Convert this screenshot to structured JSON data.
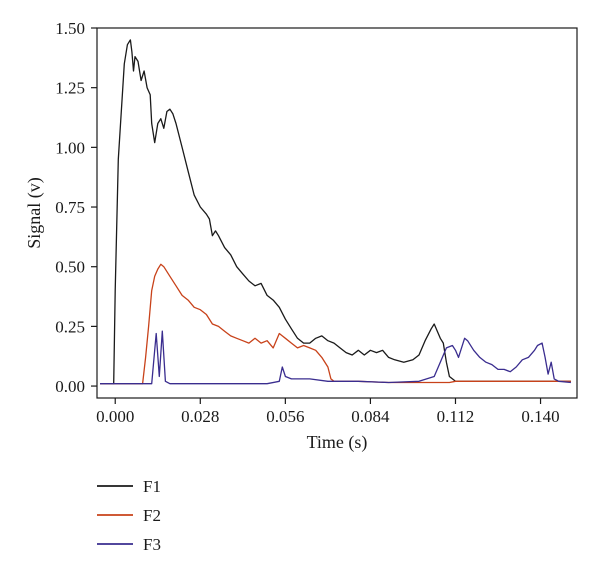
{
  "chart_data": {
    "type": "line",
    "title": "",
    "xlabel": "Time (s)",
    "ylabel": "Signal (v)",
    "xlim": [
      -0.006,
      0.152
    ],
    "ylim": [
      -0.05,
      1.5
    ],
    "x_ticks": [
      0.0,
      0.028,
      0.056,
      0.084,
      0.112,
      0.14
    ],
    "x_tick_labels": [
      "0.000",
      "0.028",
      "0.056",
      "0.084",
      "0.112",
      "0.140"
    ],
    "y_ticks": [
      0.0,
      0.25,
      0.5,
      0.75,
      1.0,
      1.25,
      1.5
    ],
    "y_tick_labels": [
      "0.00",
      "0.25",
      "0.50",
      "0.75",
      "1.00",
      "1.25",
      "1.50"
    ],
    "grid": false,
    "legend_position": "bottom-left",
    "series": [
      {
        "name": "F1",
        "color": "#1a1a1a",
        "points": [
          [
            -0.005,
            0.01
          ],
          [
            -0.0005,
            0.01
          ],
          [
            0.0,
            0.4
          ],
          [
            0.001,
            0.95
          ],
          [
            0.002,
            1.15
          ],
          [
            0.003,
            1.35
          ],
          [
            0.004,
            1.43
          ],
          [
            0.005,
            1.45
          ],
          [
            0.0055,
            1.4
          ],
          [
            0.006,
            1.32
          ],
          [
            0.0065,
            1.38
          ],
          [
            0.0075,
            1.36
          ],
          [
            0.0085,
            1.28
          ],
          [
            0.0095,
            1.32
          ],
          [
            0.0105,
            1.25
          ],
          [
            0.0115,
            1.22
          ],
          [
            0.012,
            1.1
          ],
          [
            0.013,
            1.02
          ],
          [
            0.014,
            1.1
          ],
          [
            0.015,
            1.12
          ],
          [
            0.016,
            1.08
          ],
          [
            0.017,
            1.15
          ],
          [
            0.018,
            1.16
          ],
          [
            0.019,
            1.14
          ],
          [
            0.02,
            1.1
          ],
          [
            0.022,
            1.0
          ],
          [
            0.024,
            0.9
          ],
          [
            0.026,
            0.8
          ],
          [
            0.028,
            0.75
          ],
          [
            0.03,
            0.72
          ],
          [
            0.031,
            0.7
          ],
          [
            0.032,
            0.63
          ],
          [
            0.033,
            0.65
          ],
          [
            0.034,
            0.63
          ],
          [
            0.036,
            0.58
          ],
          [
            0.038,
            0.55
          ],
          [
            0.04,
            0.5
          ],
          [
            0.042,
            0.47
          ],
          [
            0.044,
            0.44
          ],
          [
            0.046,
            0.42
          ],
          [
            0.048,
            0.43
          ],
          [
            0.05,
            0.38
          ],
          [
            0.052,
            0.36
          ],
          [
            0.054,
            0.33
          ],
          [
            0.056,
            0.28
          ],
          [
            0.058,
            0.24
          ],
          [
            0.06,
            0.2
          ],
          [
            0.062,
            0.18
          ],
          [
            0.064,
            0.18
          ],
          [
            0.066,
            0.2
          ],
          [
            0.068,
            0.21
          ],
          [
            0.07,
            0.19
          ],
          [
            0.072,
            0.18
          ],
          [
            0.074,
            0.16
          ],
          [
            0.076,
            0.14
          ],
          [
            0.078,
            0.13
          ],
          [
            0.08,
            0.15
          ],
          [
            0.082,
            0.13
          ],
          [
            0.084,
            0.15
          ],
          [
            0.086,
            0.14
          ],
          [
            0.088,
            0.15
          ],
          [
            0.09,
            0.12
          ],
          [
            0.092,
            0.11
          ],
          [
            0.095,
            0.1
          ],
          [
            0.098,
            0.11
          ],
          [
            0.1,
            0.13
          ],
          [
            0.102,
            0.19
          ],
          [
            0.104,
            0.24
          ],
          [
            0.105,
            0.26
          ],
          [
            0.106,
            0.23
          ],
          [
            0.107,
            0.2
          ],
          [
            0.108,
            0.18
          ],
          [
            0.109,
            0.1
          ],
          [
            0.11,
            0.04
          ],
          [
            0.112,
            0.02
          ],
          [
            0.115,
            0.02
          ],
          [
            0.12,
            0.02
          ],
          [
            0.13,
            0.02
          ],
          [
            0.14,
            0.02
          ],
          [
            0.15,
            0.02
          ]
        ]
      },
      {
        "name": "F2",
        "color": "#c8421a",
        "points": [
          [
            -0.005,
            0.01
          ],
          [
            0.009,
            0.01
          ],
          [
            0.01,
            0.12
          ],
          [
            0.011,
            0.25
          ],
          [
            0.012,
            0.4
          ],
          [
            0.013,
            0.46
          ],
          [
            0.014,
            0.49
          ],
          [
            0.015,
            0.51
          ],
          [
            0.016,
            0.5
          ],
          [
            0.018,
            0.46
          ],
          [
            0.02,
            0.42
          ],
          [
            0.022,
            0.38
          ],
          [
            0.024,
            0.36
          ],
          [
            0.026,
            0.33
          ],
          [
            0.028,
            0.32
          ],
          [
            0.03,
            0.3
          ],
          [
            0.032,
            0.26
          ],
          [
            0.034,
            0.25
          ],
          [
            0.036,
            0.23
          ],
          [
            0.038,
            0.21
          ],
          [
            0.04,
            0.2
          ],
          [
            0.042,
            0.19
          ],
          [
            0.044,
            0.18
          ],
          [
            0.046,
            0.2
          ],
          [
            0.048,
            0.18
          ],
          [
            0.05,
            0.19
          ],
          [
            0.052,
            0.16
          ],
          [
            0.054,
            0.22
          ],
          [
            0.055,
            0.21
          ],
          [
            0.056,
            0.2
          ],
          [
            0.058,
            0.18
          ],
          [
            0.06,
            0.16
          ],
          [
            0.062,
            0.17
          ],
          [
            0.064,
            0.16
          ],
          [
            0.066,
            0.15
          ],
          [
            0.068,
            0.12
          ],
          [
            0.07,
            0.08
          ],
          [
            0.071,
            0.03
          ],
          [
            0.072,
            0.02
          ],
          [
            0.08,
            0.02
          ],
          [
            0.09,
            0.015
          ],
          [
            0.1,
            0.015
          ],
          [
            0.11,
            0.015
          ],
          [
            0.112,
            0.02
          ],
          [
            0.12,
            0.02
          ],
          [
            0.13,
            0.02
          ],
          [
            0.14,
            0.02
          ],
          [
            0.15,
            0.02
          ]
        ]
      },
      {
        "name": "F3",
        "color": "#3a2d8f",
        "points": [
          [
            -0.005,
            0.01
          ],
          [
            0.012,
            0.01
          ],
          [
            0.0135,
            0.22
          ],
          [
            0.0145,
            0.04
          ],
          [
            0.0155,
            0.23
          ],
          [
            0.0165,
            0.02
          ],
          [
            0.018,
            0.01
          ],
          [
            0.03,
            0.01
          ],
          [
            0.05,
            0.01
          ],
          [
            0.054,
            0.02
          ],
          [
            0.055,
            0.08
          ],
          [
            0.056,
            0.04
          ],
          [
            0.058,
            0.03
          ],
          [
            0.06,
            0.03
          ],
          [
            0.064,
            0.03
          ],
          [
            0.07,
            0.02
          ],
          [
            0.08,
            0.02
          ],
          [
            0.09,
            0.015
          ],
          [
            0.1,
            0.02
          ],
          [
            0.105,
            0.04
          ],
          [
            0.107,
            0.1
          ],
          [
            0.109,
            0.16
          ],
          [
            0.111,
            0.17
          ],
          [
            0.112,
            0.15
          ],
          [
            0.113,
            0.12
          ],
          [
            0.115,
            0.2
          ],
          [
            0.116,
            0.19
          ],
          [
            0.118,
            0.15
          ],
          [
            0.12,
            0.12
          ],
          [
            0.122,
            0.1
          ],
          [
            0.124,
            0.09
          ],
          [
            0.126,
            0.07
          ],
          [
            0.128,
            0.07
          ],
          [
            0.13,
            0.06
          ],
          [
            0.132,
            0.08
          ],
          [
            0.134,
            0.11
          ],
          [
            0.136,
            0.12
          ],
          [
            0.138,
            0.15
          ],
          [
            0.139,
            0.17
          ],
          [
            0.1405,
            0.18
          ],
          [
            0.1415,
            0.12
          ],
          [
            0.1425,
            0.05
          ],
          [
            0.1435,
            0.1
          ],
          [
            0.1445,
            0.03
          ],
          [
            0.146,
            0.02
          ],
          [
            0.15,
            0.015
          ]
        ]
      }
    ]
  }
}
